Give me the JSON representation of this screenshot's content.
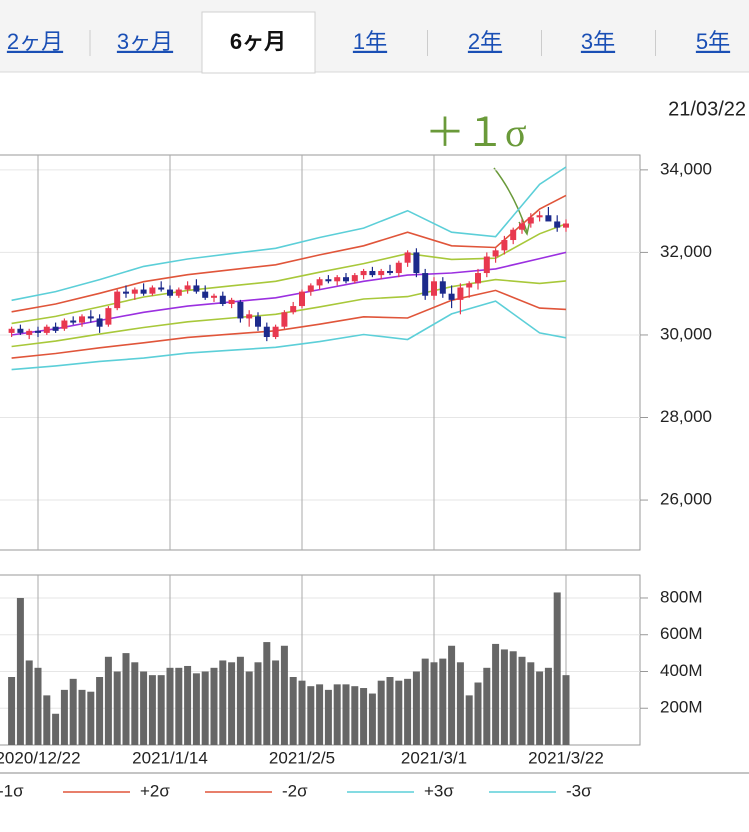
{
  "header": {
    "tabs": [
      "2ヶ月",
      "3ヶ月",
      "6ヶ月",
      "1年",
      "2年",
      "3年",
      "5年"
    ],
    "active_tab": 2,
    "date": "21/03/22"
  },
  "chart_data": [
    {
      "type": "candlestick",
      "annotation": "＋１σ",
      "up_color": "#e8384f",
      "down_color": "#1c2a8c",
      "ylim": [
        24790,
        34360
      ],
      "yticks": [
        {
          "value": 26000,
          "label": "26,000"
        },
        {
          "value": 28000,
          "label": "28,000"
        },
        {
          "value": 30000,
          "label": "30,000"
        },
        {
          "value": 32000,
          "label": "32,000"
        },
        {
          "value": 34000,
          "label": "34,000"
        }
      ],
      "grid": true,
      "ohlc": [
        [
          30050,
          30200,
          29950,
          30150
        ],
        [
          30150,
          30250,
          30000,
          30050
        ],
        [
          30000,
          30150,
          29900,
          30100
        ],
        [
          30100,
          30200,
          29950,
          30050
        ],
        [
          30050,
          30250,
          30000,
          30200
        ],
        [
          30200,
          30300,
          30050,
          30100
        ],
        [
          30150,
          30400,
          30100,
          30350
        ],
        [
          30350,
          30450,
          30250,
          30300
        ],
        [
          30300,
          30500,
          30200,
          30450
        ],
        [
          30450,
          30600,
          30300,
          30400
        ],
        [
          30400,
          30500,
          30050,
          30200
        ],
        [
          30250,
          30700,
          30200,
          30650
        ],
        [
          30650,
          31100,
          30600,
          31050
        ],
        [
          31050,
          31200,
          30900,
          31000
        ],
        [
          31000,
          31150,
          30850,
          31100
        ],
        [
          31100,
          31250,
          30950,
          31000
        ],
        [
          31000,
          31200,
          30950,
          31150
        ],
        [
          31150,
          31300,
          31050,
          31100
        ],
        [
          31100,
          31200,
          30900,
          30950
        ],
        [
          30950,
          31150,
          30900,
          31100
        ],
        [
          31100,
          31300,
          31000,
          31200
        ],
        [
          31200,
          31350,
          31000,
          31050
        ],
        [
          31050,
          31200,
          30850,
          30900
        ],
        [
          30900,
          31000,
          30800,
          30950
        ],
        [
          30950,
          31050,
          30700,
          30750
        ],
        [
          30750,
          30900,
          30650,
          30850
        ],
        [
          30800,
          30850,
          30300,
          30400
        ],
        [
          30400,
          30600,
          30200,
          30500
        ],
        [
          30450,
          30550,
          30100,
          30200
        ],
        [
          30200,
          30300,
          29850,
          29950
        ],
        [
          29950,
          30250,
          29900,
          30200
        ],
        [
          30200,
          30600,
          30150,
          30550
        ],
        [
          30550,
          30800,
          30500,
          30700
        ],
        [
          30700,
          31100,
          30650,
          31050
        ],
        [
          31050,
          31250,
          30950,
          31200
        ],
        [
          31200,
          31400,
          31100,
          31350
        ],
        [
          31350,
          31450,
          31250,
          31300
        ],
        [
          31300,
          31450,
          31200,
          31400
        ],
        [
          31400,
          31500,
          31250,
          31300
        ],
        [
          31300,
          31500,
          31250,
          31450
        ],
        [
          31450,
          31600,
          31350,
          31550
        ],
        [
          31550,
          31650,
          31400,
          31450
        ],
        [
          31450,
          31600,
          31350,
          31550
        ],
        [
          31550,
          31700,
          31450,
          31500
        ],
        [
          31500,
          31800,
          31400,
          31750
        ],
        [
          31750,
          32050,
          31650,
          32000
        ],
        [
          32000,
          32100,
          31400,
          31500
        ],
        [
          31500,
          31600,
          30850,
          30950
        ],
        [
          30950,
          31400,
          30850,
          31300
        ],
        [
          31300,
          31400,
          30900,
          31000
        ],
        [
          31000,
          31200,
          30650,
          30850
        ],
        [
          30850,
          31250,
          30500,
          31150
        ],
        [
          31150,
          31300,
          30900,
          31250
        ],
        [
          31250,
          31600,
          31100,
          31500
        ],
        [
          31500,
          32000,
          31400,
          31900
        ],
        [
          31900,
          32100,
          31750,
          32050
        ],
        [
          32050,
          32400,
          31950,
          32300
        ],
        [
          32300,
          32600,
          32200,
          32550
        ],
        [
          32550,
          32800,
          32450,
          32700
        ],
        [
          32700,
          32950,
          32600,
          32850
        ],
        [
          32850,
          33000,
          32750,
          32900
        ],
        [
          32900,
          33100,
          32800,
          32750
        ],
        [
          32750,
          32900,
          32500,
          32600
        ],
        [
          32600,
          32800,
          32500,
          32700
        ]
      ],
      "band_x": [
        0,
        5,
        10,
        15,
        20,
        25,
        30,
        35,
        40,
        45,
        50,
        55,
        60,
        63
      ],
      "series": [
        {
          "color": "#9b30e0",
          "values": [
            30000,
            30150,
            30350,
            30550,
            30700,
            30800,
            30900,
            31100,
            31300,
            31450,
            31500,
            31600,
            31850,
            32000
          ]
        },
        {
          "color": "#a8c83a",
          "values": [
            30280,
            30450,
            30680,
            30920,
            31080,
            31190,
            31300,
            31520,
            31730,
            31970,
            31830,
            31860,
            32450,
            32690
          ]
        },
        {
          "name": "-1σ",
          "color": "#a8c83a",
          "values": [
            29720,
            29850,
            30020,
            30180,
            30320,
            30410,
            30500,
            30680,
            30870,
            30930,
            31170,
            31340,
            31250,
            31310
          ]
        },
        {
          "name": "+2σ",
          "color": "#e0553a",
          "values": [
            30560,
            30750,
            31010,
            31290,
            31460,
            31580,
            31700,
            31940,
            32160,
            32490,
            32160,
            32120,
            33050,
            33380
          ]
        },
        {
          "name": "-2σ",
          "color": "#e0553a",
          "values": [
            29440,
            29550,
            29690,
            29810,
            29940,
            30020,
            30100,
            30260,
            30440,
            30410,
            30840,
            31080,
            30650,
            30620
          ]
        },
        {
          "name": "+3σ",
          "color": "#5ccfd8",
          "values": [
            30840,
            31050,
            31340,
            31660,
            31840,
            31970,
            32100,
            32360,
            32590,
            33010,
            32490,
            32380,
            33650,
            34070
          ]
        },
        {
          "name": "-3σ",
          "color": "#5ccfd8",
          "values": [
            29160,
            29250,
            29360,
            29440,
            29560,
            29630,
            29700,
            29840,
            30010,
            29890,
            30510,
            30820,
            30050,
            29930
          ]
        }
      ]
    },
    {
      "type": "bar",
      "color": "#666666",
      "ylim": [
        0,
        925
      ],
      "yticks": [
        {
          "value": 200,
          "label": "200M"
        },
        {
          "value": 400,
          "label": "400M"
        },
        {
          "value": 600,
          "label": "600M"
        },
        {
          "value": 800,
          "label": "800M"
        }
      ],
      "grid": true,
      "categories": [
        null,
        null,
        null,
        "2020/12/22",
        null,
        null,
        null,
        null,
        null,
        null,
        null,
        null,
        null,
        null,
        null,
        null,
        null,
        null,
        "2021/1/14",
        null,
        null,
        null,
        null,
        null,
        null,
        null,
        null,
        null,
        null,
        null,
        null,
        null,
        null,
        "2021/2/5",
        null,
        null,
        null,
        null,
        null,
        null,
        null,
        null,
        null,
        null,
        null,
        null,
        null,
        null,
        "2021/3/1",
        null,
        null,
        null,
        null,
        null,
        null,
        null,
        null,
        null,
        null,
        null,
        null,
        null,
        null,
        "2021/3/22"
      ],
      "values": [
        370,
        800,
        460,
        420,
        270,
        170,
        300,
        360,
        300,
        290,
        370,
        480,
        400,
        500,
        450,
        400,
        380,
        380,
        420,
        420,
        430,
        390,
        400,
        420,
        460,
        450,
        480,
        400,
        450,
        560,
        460,
        540,
        370,
        350,
        320,
        330,
        300,
        330,
        330,
        320,
        310,
        280,
        350,
        370,
        350,
        360,
        400,
        470,
        450,
        470,
        540,
        450,
        270,
        340,
        420,
        550,
        520,
        510,
        480,
        450,
        400,
        420,
        830,
        380
      ]
    }
  ]
}
